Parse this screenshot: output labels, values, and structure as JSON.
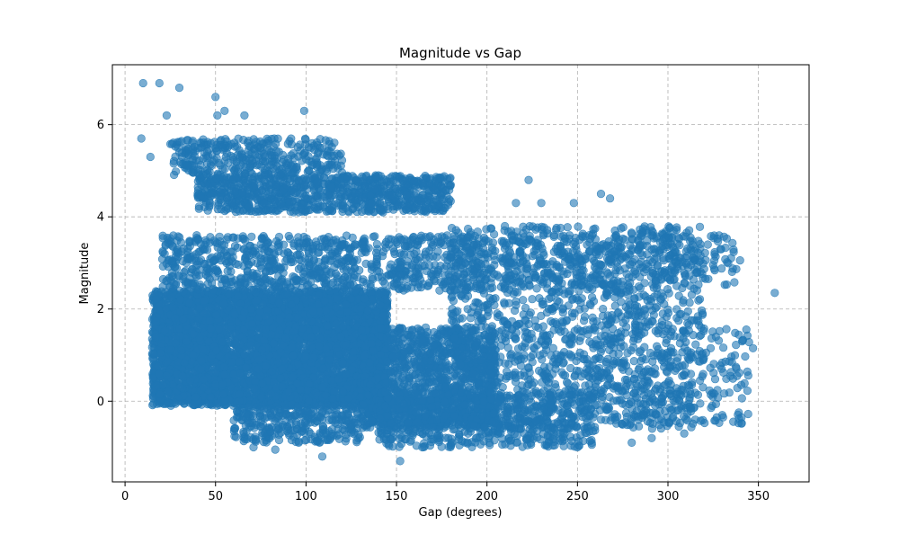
{
  "chart_data": {
    "type": "scatter",
    "title": "Magnitude vs Gap",
    "xlabel": "Gap (degrees)",
    "ylabel": "Magnitude",
    "xlim": [
      -7,
      378
    ],
    "ylim": [
      -1.75,
      7.3
    ],
    "xticks": [
      0,
      50,
      100,
      150,
      200,
      250,
      300,
      350
    ],
    "yticks": [
      0,
      2,
      4,
      6
    ],
    "x_tick_labels": [
      "0",
      "50",
      "100",
      "150",
      "200",
      "250",
      "300",
      "350"
    ],
    "y_tick_labels": [
      "0",
      "2",
      "4",
      "6"
    ],
    "grid": true,
    "marker_color": "#1f77b4",
    "marker_alpha": 0.6,
    "highlight_points": [
      [
        10,
        6.9
      ],
      [
        19,
        6.9
      ],
      [
        30,
        6.8
      ],
      [
        50,
        6.6
      ],
      [
        99,
        6.3
      ],
      [
        55,
        6.3
      ],
      [
        51,
        6.2
      ],
      [
        23,
        6.2
      ],
      [
        66,
        6.2
      ],
      [
        359,
        2.35
      ],
      [
        347,
        1.15
      ],
      [
        341,
        1.3
      ],
      [
        329,
        3.3
      ],
      [
        322,
        3.4
      ],
      [
        310,
        3.0
      ],
      [
        298,
        2.8
      ],
      [
        302,
        3.4
      ],
      [
        286,
        3.65
      ],
      [
        263,
        4.5
      ],
      [
        268,
        4.4
      ],
      [
        223,
        4.8
      ],
      [
        216,
        4.3
      ],
      [
        230,
        4.3
      ],
      [
        248,
        4.3
      ],
      [
        280,
        -0.9
      ],
      [
        291,
        -0.8
      ],
      [
        309,
        -0.7
      ],
      [
        306,
        -0.55
      ],
      [
        327,
        -0.35
      ],
      [
        330,
        -0.3
      ],
      [
        109,
        -1.2
      ],
      [
        152,
        -1.3
      ],
      [
        128,
        -0.85
      ],
      [
        71,
        -1.0
      ],
      [
        83,
        -1.05
      ],
      [
        263,
        -0.4
      ],
      [
        250,
        -1.0
      ],
      [
        21,
        0.35
      ],
      [
        14,
        5.3
      ],
      [
        9,
        5.7
      ]
    ],
    "clusters": [
      {
        "name": "",
        "n": 5200,
        "x": [
          15,
          145
        ],
        "y": [
          -0.1,
          2.4
        ],
        "sx": 0,
        "sy": 0
      },
      {
        "name": "",
        "n": 1300,
        "x": [
          130,
          205
        ],
        "y": [
          -0.6,
          1.6
        ],
        "sx": 0,
        "sy": 0
      },
      {
        "name": "",
        "n": 900,
        "x": [
          40,
          180
        ],
        "y": [
          4.1,
          4.9
        ],
        "sx": 0,
        "sy": 0
      },
      {
        "name": "",
        "n": 350,
        "x": [
          25,
          120
        ],
        "y": [
          4.9,
          5.7
        ],
        "sx": 0,
        "sy": 0
      },
      {
        "name": "",
        "n": 900,
        "x": [
          20,
          200
        ],
        "y": [
          2.4,
          3.6
        ],
        "sx": 0,
        "sy": 0
      },
      {
        "name": "",
        "n": 1500,
        "x": [
          180,
          320
        ],
        "y": [
          -0.6,
          3.8
        ],
        "sx": 0,
        "sy": 0
      },
      {
        "name": "",
        "n": 600,
        "x": [
          140,
          260
        ],
        "y": [
          -1.0,
          0.2
        ],
        "sx": 0,
        "sy": 0
      },
      {
        "name": "",
        "n": 250,
        "x": [
          200,
          340
        ],
        "y": [
          2.5,
          3.6
        ],
        "sx": 0,
        "sy": 0
      },
      {
        "name": "",
        "n": 200,
        "x": [
          260,
          345
        ],
        "y": [
          -0.5,
          1.6
        ],
        "sx": 0,
        "sy": 0
      },
      {
        "name": "",
        "n": 300,
        "x": [
          60,
          130
        ],
        "y": [
          -0.9,
          -0.1
        ],
        "sx": 0,
        "sy": 0
      }
    ]
  }
}
